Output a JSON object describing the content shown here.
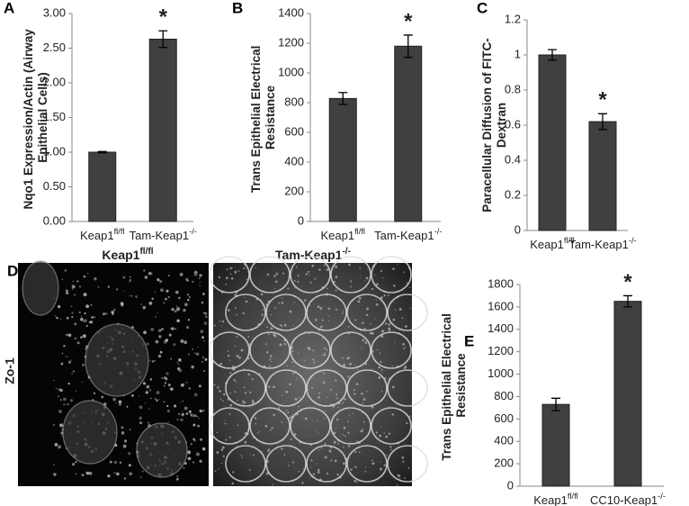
{
  "chart_data": [
    {
      "type": "bar",
      "panel_label": "A",
      "y_label": "Nqo1 Expression/Actin (Airway Epithelial Cells)",
      "categories": [
        "Keap1fl/fl",
        "Tam-Keap1-/-"
      ],
      "values": [
        1.0,
        2.63
      ],
      "errors": [
        0.01,
        0.12
      ],
      "color": "#404040",
      "ylim": [
        0,
        3
      ],
      "yticks": [
        {
          "value": 0,
          "label": "0.00"
        },
        {
          "value": 0.5,
          "label": "0.50"
        },
        {
          "value": 1,
          "label": "1.00"
        },
        {
          "value": 1.5,
          "label": "1.50"
        },
        {
          "value": 2,
          "label": "2.00"
        },
        {
          "value": 2.5,
          "label": "2.50"
        },
        {
          "value": 3,
          "label": "3.00"
        }
      ],
      "annotations": [
        {
          "text": "*",
          "category": "Tam-Keap1-/-"
        }
      ]
    },
    {
      "type": "bar",
      "panel_label": "B",
      "y_label": "Trans Epithelial Electrical Resistance",
      "categories": [
        "Keap1fl/fl",
        "Tam-Keap1-/-"
      ],
      "values": [
        828,
        1180
      ],
      "errors": [
        40,
        75
      ],
      "color": "#404040",
      "ylim": [
        0,
        1400
      ],
      "yticks": [
        0,
        200,
        400,
        600,
        800,
        1000,
        1200,
        1400
      ],
      "annotations": [
        {
          "text": "*",
          "category": "Tam-Keap1-/-"
        }
      ]
    },
    {
      "type": "bar",
      "panel_label": "C",
      "y_label": "Paracellular Diffusion of FITC-Dextran",
      "categories": [
        "Keap1fl/fl",
        "Tam-Keap1-/-"
      ],
      "values": [
        1.0,
        0.62
      ],
      "errors": [
        0.03,
        0.045
      ],
      "color": "#404040",
      "ylim": [
        0,
        1.2
      ],
      "yticks": [
        0,
        0.2,
        0.4,
        0.6,
        0.8,
        1,
        1.2
      ],
      "annotations": [
        {
          "text": "*",
          "category": "Tam-Keap1-/-"
        }
      ]
    },
    {
      "type": "bar",
      "panel_label": "E",
      "y_label": "Trans Epithelial Electrical Resistance",
      "categories": [
        "Keap1fl/fl",
        "CC10-Keap1-/-"
      ],
      "values": [
        730,
        1650
      ],
      "errors": [
        55,
        50
      ],
      "color": "#404040",
      "ylim": [
        0,
        1800
      ],
      "yticks": [
        0,
        200,
        400,
        600,
        800,
        1000,
        1200,
        1400,
        1600,
        1800
      ],
      "annotations": [
        {
          "text": "*",
          "category": "CC10-Keap1-/-"
        }
      ]
    }
  ],
  "panel_d": {
    "panel_label": "D",
    "stain": "Zo-1",
    "image_titles": [
      "Keap1fl/fl",
      "Tam-Keap1-/-"
    ]
  }
}
